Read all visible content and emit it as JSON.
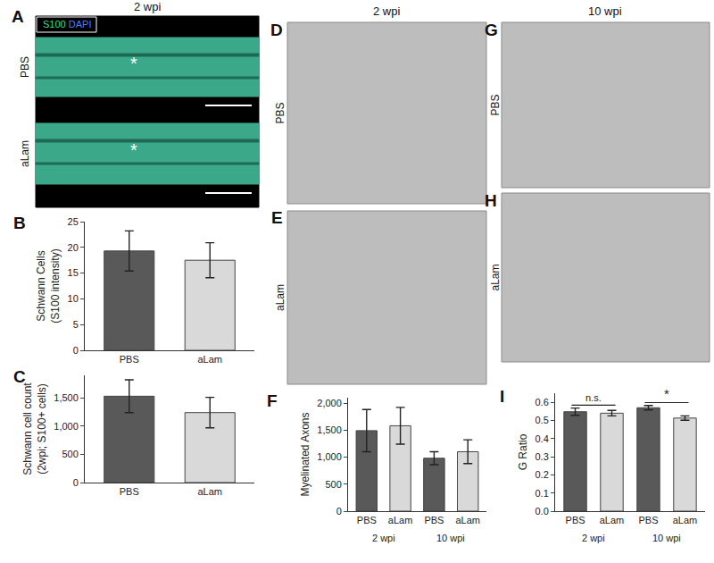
{
  "chart_data": [
    {
      "panel": "B",
      "type": "bar",
      "categories": [
        "PBS",
        "aLam"
      ],
      "values": [
        19.3,
        17.5
      ],
      "errors": [
        3.9,
        3.4
      ],
      "colors": [
        "#595959",
        "#d9d9d9"
      ],
      "ylabel": [
        "Schwann Cells",
        "(S100 intensity)"
      ],
      "ylim": [
        0,
        25
      ],
      "yticks": [
        0,
        5,
        10,
        15,
        20,
        25
      ],
      "grid": false
    },
    {
      "panel": "C",
      "type": "bar",
      "categories": [
        "PBS",
        "aLam"
      ],
      "values": [
        1530,
        1240
      ],
      "errors": [
        290,
        270
      ],
      "colors": [
        "#595959",
        "#d9d9d9"
      ],
      "ylabel": [
        "Schwann cell count",
        "(2wpi; S100+ cells)"
      ],
      "ylim": [
        0,
        1900
      ],
      "yticks": [
        0,
        500,
        {
          "value": 1000,
          "label": "1,000"
        },
        {
          "value": 1500,
          "label": "1,500"
        }
      ],
      "grid": false
    },
    {
      "panel": "F",
      "type": "bar",
      "categories": [
        "PBS",
        "aLam",
        "PBS",
        "aLam"
      ],
      "groups": [
        "2 wpi",
        "10 wpi"
      ],
      "values": [
        1490,
        1580,
        980,
        1100
      ],
      "errors": [
        390,
        340,
        120,
        220
      ],
      "colors": [
        "#595959",
        "#d9d9d9",
        "#595959",
        "#d9d9d9"
      ],
      "ylabel": [
        "Myelinated Axons"
      ],
      "ylim": [
        0,
        2100
      ],
      "yticks": [
        0,
        500,
        {
          "value": 1000,
          "label": "1,000"
        },
        {
          "value": 1500,
          "label": "1,500"
        },
        {
          "value": 2000,
          "label": "2,000"
        }
      ],
      "grid": false
    },
    {
      "panel": "I",
      "type": "bar",
      "categories": [
        "PBS",
        "aLam",
        "PBS",
        "aLam"
      ],
      "groups": [
        "2 wpi",
        "10 wpi"
      ],
      "values": [
        0.548,
        0.54,
        0.57,
        0.513
      ],
      "errors": [
        0.02,
        0.015,
        0.012,
        0.012
      ],
      "colors": [
        "#595959",
        "#d9d9d9",
        "#595959",
        "#d9d9d9"
      ],
      "ylabel": [
        "G Ratio"
      ],
      "ylim": [
        0,
        0.65
      ],
      "yticks": [
        {
          "value": 0,
          "label": "0.0"
        },
        0.1,
        0.2,
        0.3,
        0.4,
        0.5,
        0.6
      ],
      "grid": false,
      "significance": [
        {
          "pair": [
            0,
            1
          ],
          "label": "n.s."
        },
        {
          "pair": [
            2,
            3
          ],
          "label": "*"
        }
      ]
    }
  ],
  "figure": {
    "A": {
      "letter": "A",
      "header": "2 wpi",
      "stains": [
        {
          "text": "S100",
          "color": "#3ddc84"
        },
        {
          "text": "DAPI",
          "color": "#4a7dff"
        }
      ],
      "rows": [
        "PBS",
        "aLam"
      ],
      "mark": "*"
    },
    "DE": {
      "letters": [
        "D",
        "E"
      ],
      "header": "2 wpi",
      "rows": [
        "PBS",
        "aLam"
      ]
    },
    "GH": {
      "letters": [
        "G",
        "H"
      ],
      "header": "10 wpi",
      "rows": [
        "PBS",
        "aLam"
      ]
    }
  }
}
